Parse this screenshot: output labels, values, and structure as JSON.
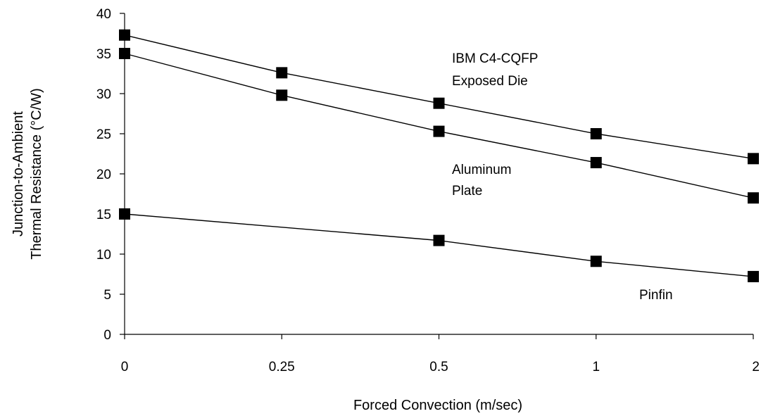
{
  "chart_data": {
    "type": "line",
    "categories": [
      "0",
      "0.25",
      "0.5",
      "1",
      "2"
    ],
    "xlabel": "Forced Convection (m/sec)",
    "ylabel": [
      "Junction-to-Ambient",
      "Thermal Resistance (°C/W)"
    ],
    "ylim": [
      0,
      40
    ],
    "yticks": [
      0,
      5,
      10,
      15,
      20,
      25,
      30,
      35,
      40
    ],
    "grid": false,
    "series": [
      {
        "values": [
          37.3,
          32.6,
          28.8,
          25.0,
          21.9
        ]
      },
      {
        "values": [
          35.0,
          29.8,
          25.3,
          21.4,
          17.0
        ]
      },
      {
        "values": [
          15.0,
          null,
          11.7,
          9.1,
          7.2
        ]
      }
    ],
    "annotations": [
      {
        "lines": [
          "IBM C4-CQFP",
          "Exposed Die"
        ]
      },
      {
        "lines": [
          "Aluminum",
          "Plate"
        ]
      },
      {
        "lines": [
          "Pinfin"
        ]
      }
    ]
  }
}
